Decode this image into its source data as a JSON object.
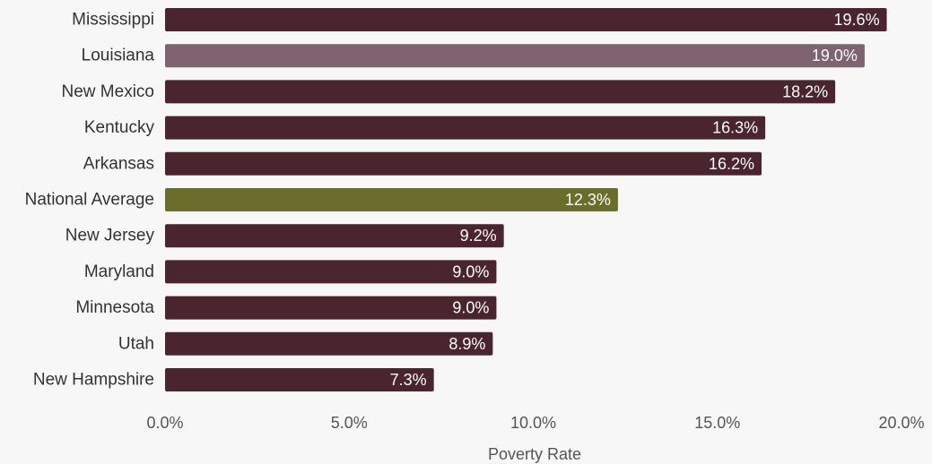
{
  "chart_data": {
    "type": "bar",
    "orientation": "horizontal",
    "title": "",
    "xlabel": "Poverty Rate",
    "ylabel": "",
    "categories": [
      "Mississippi",
      "Louisiana",
      "New Mexico",
      "Kentucky",
      "Arkansas",
      "National Average",
      "New Jersey",
      "Maryland",
      "Minnesota",
      "Utah",
      "New Hampshire"
    ],
    "values": [
      19.6,
      19.0,
      18.2,
      16.3,
      16.2,
      12.3,
      9.2,
      9.0,
      9.0,
      8.9,
      7.3
    ],
    "value_labels": [
      "19.6%",
      "19.0%",
      "18.2%",
      "16.3%",
      "16.2%",
      "12.3%",
      "9.2%",
      "9.0%",
      "9.0%",
      "8.9%",
      "7.3%"
    ],
    "bar_colors": [
      "#4a2530",
      "#7d6470",
      "#4a2530",
      "#4a2530",
      "#4a2530",
      "#6b6d2b",
      "#4a2530",
      "#4a2530",
      "#4a2530",
      "#4a2530",
      "#4a2530"
    ],
    "xlim": [
      0,
      20
    ],
    "x_ticks": [
      0,
      5,
      10,
      15,
      20
    ],
    "x_tick_labels": [
      "0.0%",
      "5.0%",
      "10.0%",
      "15.0%",
      "20.0%"
    ],
    "grid": false,
    "legend": false
  },
  "colors": {
    "background": "#f7f7f7",
    "default_bar": "#4a2530",
    "highlight_bar": "#7d6470",
    "average_bar": "#6b6d2b"
  }
}
